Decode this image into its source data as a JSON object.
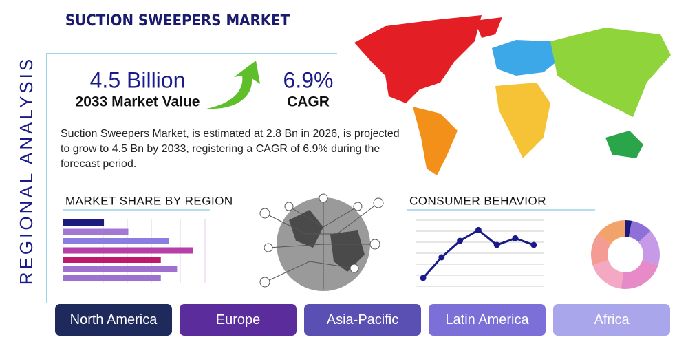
{
  "header": {
    "title": "SUCTION SWEEPERS MARKET",
    "side_label": "REGIONAL ANALYSIS"
  },
  "stats": [
    {
      "value": "4.5 Billion",
      "label": "2033 Market Value"
    },
    {
      "value": "6.9%",
      "label": "CAGR"
    }
  ],
  "description": "Suction Sweepers Market, is estimated at 2.8 Bn in 2026, is projected to grow to 4.5 Bn by 2033, registering a CAGR of 6.9% during the forecast period.",
  "market_share": {
    "title": "MARKET SHARE BY REGION",
    "type": "bar",
    "values": [
      25,
      40,
      65,
      80,
      60,
      70,
      60
    ],
    "colors": [
      "#1c1a7e",
      "#a278d4",
      "#8b7ee0",
      "#b540a8",
      "#c0186c",
      "#a070d0",
      "#9c72d0"
    ]
  },
  "consumer_behavior": {
    "title": "CONSUMER BEHAVIOR",
    "line": {
      "type": "line",
      "values": [
        10,
        35,
        55,
        68,
        50,
        58,
        50
      ],
      "ylim": [
        0,
        80
      ],
      "color": "#1a1a8a"
    },
    "donut": {
      "type": "pie",
      "values": [
        3,
        10,
        17,
        22,
        18,
        15,
        15
      ],
      "colors": [
        "#1c1a7e",
        "#8f6fd8",
        "#c79ae8",
        "#e68ac8",
        "#f4a8c4",
        "#f49c94",
        "#f2a36a"
      ]
    }
  },
  "regions": [
    {
      "label": "North America",
      "color": "#1f2a5c"
    },
    {
      "label": "Europe",
      "color": "#5a2c9c"
    },
    {
      "label": "Asia-Pacific",
      "color": "#5a4fb2"
    },
    {
      "label": "Latin America",
      "color": "#7c6fd8"
    },
    {
      "label": "Africa",
      "color": "#aaa6ec"
    }
  ]
}
